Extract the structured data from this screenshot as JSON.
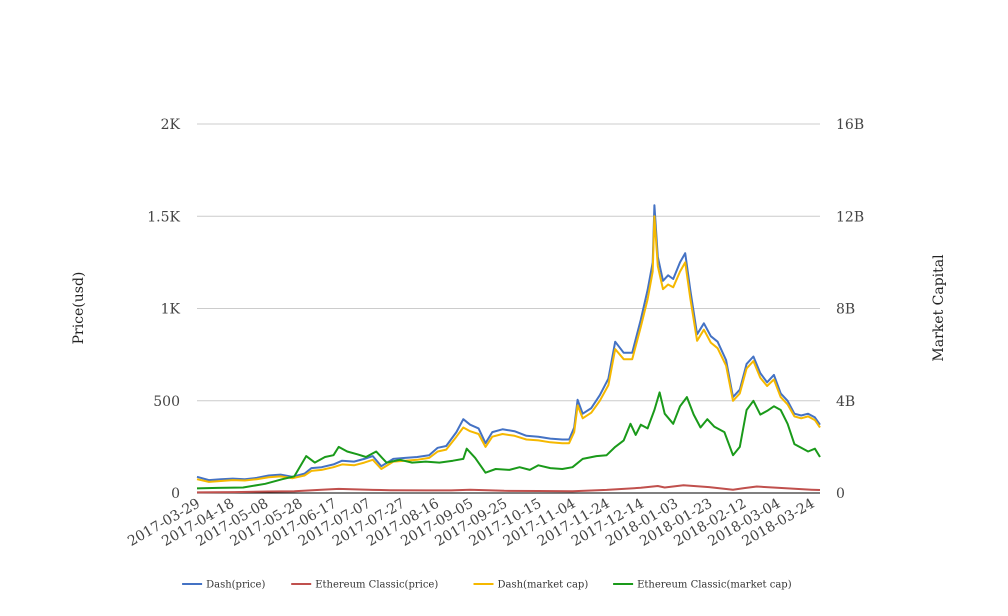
{
  "chart_data": {
    "type": "line",
    "title": "",
    "ylabel": "Price(usd)",
    "y2label": "Market Capital",
    "x_ticks": [
      "2017-03-29",
      "2017-04-18",
      "2017-05-08",
      "2017-05-28",
      "2017-06-17",
      "2017-07-07",
      "2017-07-27",
      "2017-08-16",
      "2017-09-05",
      "2017-09-25",
      "2017-10-15",
      "2017-11-04",
      "2017-11-24",
      "2017-12-14",
      "2018-01-03",
      "2018-01-23",
      "2018-02-12",
      "2018-03-04",
      "2018-03-24"
    ],
    "x_range": [
      "2017-03-29",
      "2018-03-29"
    ],
    "ylim": [
      0,
      2000
    ],
    "y_ticks": [
      0,
      500,
      1000,
      1500,
      2000
    ],
    "y_tick_labels": [
      "0",
      "500",
      "1K",
      "1.5K",
      "2K"
    ],
    "y2lim": [
      0,
      16000000000
    ],
    "y2_ticks": [
      0,
      4000000000,
      8000000000,
      12000000000,
      16000000000
    ],
    "y2_tick_labels": [
      "0",
      "4B",
      "8B",
      "12B",
      "16B"
    ],
    "grid": true,
    "legend_position": "bottom",
    "series": [
      {
        "name": "Dash(price)",
        "axis": "left",
        "color": "#4472c4",
        "points": [
          [
            "2017-03-29",
            88
          ],
          [
            "2017-04-05",
            70
          ],
          [
            "2017-04-12",
            75
          ],
          [
            "2017-04-19",
            78
          ],
          [
            "2017-04-26",
            75
          ],
          [
            "2017-05-03",
            82
          ],
          [
            "2017-05-10",
            95
          ],
          [
            "2017-05-17",
            100
          ],
          [
            "2017-05-24",
            88
          ],
          [
            "2017-05-31",
            105
          ],
          [
            "2017-06-04",
            135
          ],
          [
            "2017-06-10",
            140
          ],
          [
            "2017-06-17",
            155
          ],
          [
            "2017-06-22",
            175
          ],
          [
            "2017-06-29",
            170
          ],
          [
            "2017-07-05",
            185
          ],
          [
            "2017-07-10",
            200
          ],
          [
            "2017-07-15",
            145
          ],
          [
            "2017-07-22",
            185
          ],
          [
            "2017-07-29",
            190
          ],
          [
            "2017-08-05",
            195
          ],
          [
            "2017-08-12",
            205
          ],
          [
            "2017-08-17",
            245
          ],
          [
            "2017-08-22",
            255
          ],
          [
            "2017-08-28",
            330
          ],
          [
            "2017-09-01",
            400
          ],
          [
            "2017-09-05",
            370
          ],
          [
            "2017-09-10",
            350
          ],
          [
            "2017-09-14",
            270
          ],
          [
            "2017-09-18",
            330
          ],
          [
            "2017-09-24",
            345
          ],
          [
            "2017-10-01",
            335
          ],
          [
            "2017-10-08",
            310
          ],
          [
            "2017-10-15",
            305
          ],
          [
            "2017-10-22",
            295
          ],
          [
            "2017-10-29",
            290
          ],
          [
            "2017-11-02",
            290
          ],
          [
            "2017-11-05",
            355
          ],
          [
            "2017-11-07",
            505
          ],
          [
            "2017-11-10",
            430
          ],
          [
            "2017-11-15",
            460
          ],
          [
            "2017-11-20",
            530
          ],
          [
            "2017-11-25",
            620
          ],
          [
            "2017-11-29",
            820
          ],
          [
            "2017-12-04",
            760
          ],
          [
            "2017-12-09",
            760
          ],
          [
            "2017-12-14",
            940
          ],
          [
            "2017-12-18",
            1100
          ],
          [
            "2017-12-21",
            1250
          ],
          [
            "2017-12-22",
            1560
          ],
          [
            "2017-12-24",
            1280
          ],
          [
            "2017-12-27",
            1150
          ],
          [
            "2017-12-30",
            1180
          ],
          [
            "2018-01-02",
            1160
          ],
          [
            "2018-01-06",
            1250
          ],
          [
            "2018-01-09",
            1300
          ],
          [
            "2018-01-12",
            1100
          ],
          [
            "2018-01-16",
            860
          ],
          [
            "2018-01-20",
            920
          ],
          [
            "2018-01-24",
            850
          ],
          [
            "2018-01-28",
            820
          ],
          [
            "2018-02-02",
            720
          ],
          [
            "2018-02-06",
            520
          ],
          [
            "2018-02-10",
            560
          ],
          [
            "2018-02-14",
            700
          ],
          [
            "2018-02-18",
            740
          ],
          [
            "2018-02-22",
            650
          ],
          [
            "2018-02-26",
            600
          ],
          [
            "2018-03-02",
            640
          ],
          [
            "2018-03-06",
            540
          ],
          [
            "2018-03-10",
            500
          ],
          [
            "2018-03-14",
            430
          ],
          [
            "2018-03-18",
            420
          ],
          [
            "2018-03-22",
            430
          ],
          [
            "2018-03-26",
            410
          ],
          [
            "2018-03-29",
            370
          ]
        ]
      },
      {
        "name": "Ethereum Classic(price)",
        "axis": "left",
        "color": "#c0504d",
        "points": [
          [
            "2017-03-29",
            3
          ],
          [
            "2017-04-20",
            5
          ],
          [
            "2017-05-10",
            8
          ],
          [
            "2017-05-25",
            10
          ],
          [
            "2017-06-10",
            18
          ],
          [
            "2017-06-20",
            22
          ],
          [
            "2017-07-10",
            17
          ],
          [
            "2017-07-20",
            15
          ],
          [
            "2017-08-10",
            14
          ],
          [
            "2017-08-25",
            14
          ],
          [
            "2017-09-05",
            18
          ],
          [
            "2017-09-25",
            12
          ],
          [
            "2017-10-15",
            11
          ],
          [
            "2017-11-04",
            10
          ],
          [
            "2017-11-24",
            17
          ],
          [
            "2017-12-14",
            28
          ],
          [
            "2017-12-24",
            38
          ],
          [
            "2017-12-28",
            30
          ],
          [
            "2018-01-08",
            42
          ],
          [
            "2018-01-23",
            32
          ],
          [
            "2018-02-06",
            18
          ],
          [
            "2018-02-12",
            26
          ],
          [
            "2018-02-20",
            35
          ],
          [
            "2018-03-04",
            28
          ],
          [
            "2018-03-24",
            18
          ],
          [
            "2018-03-29",
            16
          ]
        ]
      },
      {
        "name": "Dash(market cap)",
        "axis": "right",
        "color": "#f5b800",
        "points": [
          [
            "2017-03-29",
            600000000
          ],
          [
            "2017-04-05",
            480000000
          ],
          [
            "2017-04-12",
            520000000
          ],
          [
            "2017-04-19",
            560000000
          ],
          [
            "2017-04-26",
            540000000
          ],
          [
            "2017-05-03",
            600000000
          ],
          [
            "2017-05-10",
            680000000
          ],
          [
            "2017-05-17",
            720000000
          ],
          [
            "2017-05-24",
            640000000
          ],
          [
            "2017-05-31",
            760000000
          ],
          [
            "2017-06-04",
            960000000
          ],
          [
            "2017-06-10",
            1000000000
          ],
          [
            "2017-06-17",
            1120000000
          ],
          [
            "2017-06-22",
            1240000000
          ],
          [
            "2017-06-29",
            1200000000
          ],
          [
            "2017-07-05",
            1320000000
          ],
          [
            "2017-07-10",
            1440000000
          ],
          [
            "2017-07-15",
            1040000000
          ],
          [
            "2017-07-22",
            1360000000
          ],
          [
            "2017-07-29",
            1400000000
          ],
          [
            "2017-08-05",
            1440000000
          ],
          [
            "2017-08-12",
            1520000000
          ],
          [
            "2017-08-17",
            1800000000
          ],
          [
            "2017-08-22",
            1880000000
          ],
          [
            "2017-08-28",
            2440000000
          ],
          [
            "2017-09-01",
            2840000000
          ],
          [
            "2017-09-05",
            2680000000
          ],
          [
            "2017-09-10",
            2560000000
          ],
          [
            "2017-09-14",
            2000000000
          ],
          [
            "2017-09-18",
            2440000000
          ],
          [
            "2017-09-24",
            2560000000
          ],
          [
            "2017-10-01",
            2480000000
          ],
          [
            "2017-10-08",
            2320000000
          ],
          [
            "2017-10-15",
            2280000000
          ],
          [
            "2017-10-22",
            2200000000
          ],
          [
            "2017-10-29",
            2160000000
          ],
          [
            "2017-11-02",
            2160000000
          ],
          [
            "2017-11-05",
            2640000000
          ],
          [
            "2017-11-07",
            3800000000
          ],
          [
            "2017-11-10",
            3240000000
          ],
          [
            "2017-11-15",
            3480000000
          ],
          [
            "2017-11-20",
            4000000000
          ],
          [
            "2017-11-25",
            4680000000
          ],
          [
            "2017-11-29",
            6240000000
          ],
          [
            "2017-12-04",
            5800000000
          ],
          [
            "2017-12-09",
            5800000000
          ],
          [
            "2017-12-14",
            7200000000
          ],
          [
            "2017-12-18",
            8400000000
          ],
          [
            "2017-12-21",
            9600000000
          ],
          [
            "2017-12-22",
            12000000000
          ],
          [
            "2017-12-24",
            9840000000
          ],
          [
            "2017-12-27",
            8840000000
          ],
          [
            "2017-12-30",
            9040000000
          ],
          [
            "2018-01-02",
            8920000000
          ],
          [
            "2018-01-06",
            9600000000
          ],
          [
            "2018-01-09",
            10000000000
          ],
          [
            "2018-01-12",
            8440000000
          ],
          [
            "2018-01-16",
            6600000000
          ],
          [
            "2018-01-20",
            7080000000
          ],
          [
            "2018-01-24",
            6520000000
          ],
          [
            "2018-01-28",
            6280000000
          ],
          [
            "2018-02-02",
            5520000000
          ],
          [
            "2018-02-06",
            4000000000
          ],
          [
            "2018-02-10",
            4320000000
          ],
          [
            "2018-02-14",
            5400000000
          ],
          [
            "2018-02-18",
            5720000000
          ],
          [
            "2018-02-22",
            5000000000
          ],
          [
            "2018-02-26",
            4640000000
          ],
          [
            "2018-03-02",
            4920000000
          ],
          [
            "2018-03-06",
            4160000000
          ],
          [
            "2018-03-10",
            3840000000
          ],
          [
            "2018-03-14",
            3320000000
          ],
          [
            "2018-03-18",
            3240000000
          ],
          [
            "2018-03-22",
            3320000000
          ],
          [
            "2018-03-26",
            3160000000
          ],
          [
            "2018-03-29",
            2840000000
          ]
        ]
      },
      {
        "name": "Ethereum Classic(market cap)",
        "axis": "right",
        "color": "#1a9a1a",
        "points": [
          [
            "2017-03-29",
            200000000
          ],
          [
            "2017-04-10",
            220000000
          ],
          [
            "2017-04-25",
            240000000
          ],
          [
            "2017-05-08",
            400000000
          ],
          [
            "2017-05-18",
            600000000
          ],
          [
            "2017-05-25",
            720000000
          ],
          [
            "2017-06-01",
            1600000000
          ],
          [
            "2017-06-06",
            1320000000
          ],
          [
            "2017-06-12",
            1560000000
          ],
          [
            "2017-06-17",
            1640000000
          ],
          [
            "2017-06-20",
            2000000000
          ],
          [
            "2017-06-25",
            1800000000
          ],
          [
            "2017-07-01",
            1680000000
          ],
          [
            "2017-07-06",
            1560000000
          ],
          [
            "2017-07-12",
            1800000000
          ],
          [
            "2017-07-18",
            1320000000
          ],
          [
            "2017-07-26",
            1440000000
          ],
          [
            "2017-08-02",
            1320000000
          ],
          [
            "2017-08-10",
            1360000000
          ],
          [
            "2017-08-18",
            1320000000
          ],
          [
            "2017-08-26",
            1400000000
          ],
          [
            "2017-09-01",
            1480000000
          ],
          [
            "2017-09-03",
            1920000000
          ],
          [
            "2017-09-08",
            1520000000
          ],
          [
            "2017-09-14",
            880000000
          ],
          [
            "2017-09-20",
            1040000000
          ],
          [
            "2017-09-28",
            1000000000
          ],
          [
            "2017-10-04",
            1120000000
          ],
          [
            "2017-10-10",
            1000000000
          ],
          [
            "2017-10-15",
            1200000000
          ],
          [
            "2017-10-22",
            1080000000
          ],
          [
            "2017-10-29",
            1040000000
          ],
          [
            "2017-11-04",
            1120000000
          ],
          [
            "2017-11-10",
            1480000000
          ],
          [
            "2017-11-18",
            1600000000
          ],
          [
            "2017-11-24",
            1640000000
          ],
          [
            "2017-11-29",
            2000000000
          ],
          [
            "2017-12-04",
            2280000000
          ],
          [
            "2017-12-08",
            3000000000
          ],
          [
            "2017-12-11",
            2520000000
          ],
          [
            "2017-12-14",
            2960000000
          ],
          [
            "2017-12-18",
            2800000000
          ],
          [
            "2017-12-22",
            3600000000
          ],
          [
            "2017-12-25",
            4360000000
          ],
          [
            "2017-12-28",
            3440000000
          ],
          [
            "2018-01-02",
            3000000000
          ],
          [
            "2018-01-06",
            3760000000
          ],
          [
            "2018-01-10",
            4160000000
          ],
          [
            "2018-01-14",
            3400000000
          ],
          [
            "2018-01-18",
            2840000000
          ],
          [
            "2018-01-22",
            3200000000
          ],
          [
            "2018-01-26",
            2880000000
          ],
          [
            "2018-02-01",
            2640000000
          ],
          [
            "2018-02-06",
            1640000000
          ],
          [
            "2018-02-10",
            2000000000
          ],
          [
            "2018-02-14",
            3600000000
          ],
          [
            "2018-02-18",
            4000000000
          ],
          [
            "2018-02-22",
            3400000000
          ],
          [
            "2018-02-26",
            3560000000
          ],
          [
            "2018-03-02",
            3760000000
          ],
          [
            "2018-03-06",
            3600000000
          ],
          [
            "2018-03-10",
            3000000000
          ],
          [
            "2018-03-14",
            2120000000
          ],
          [
            "2018-03-18",
            1960000000
          ],
          [
            "2018-03-22",
            1800000000
          ],
          [
            "2018-03-26",
            1920000000
          ],
          [
            "2018-03-29",
            1560000000
          ]
        ]
      }
    ]
  }
}
